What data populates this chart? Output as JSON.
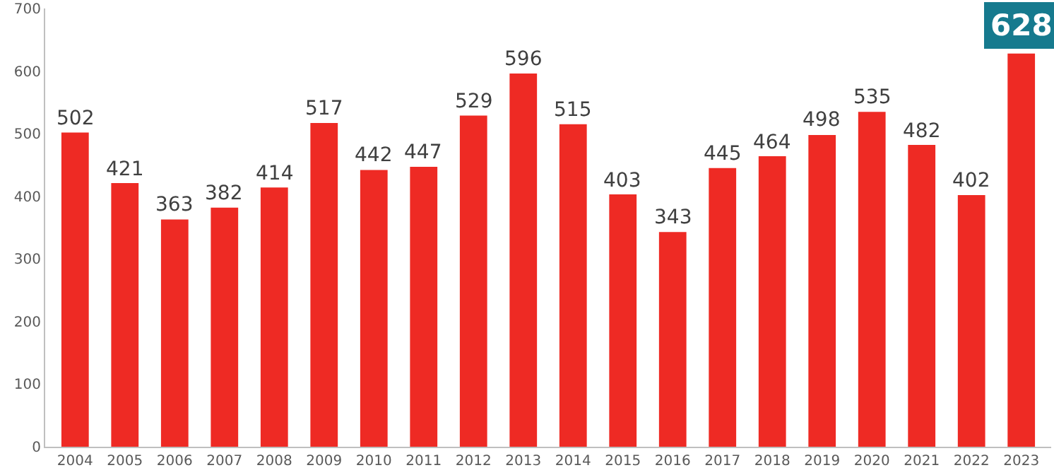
{
  "chart_data": {
    "type": "bar",
    "categories": [
      "2004",
      "2005",
      "2006",
      "2007",
      "2008",
      "2009",
      "2010",
      "2011",
      "2012",
      "2013",
      "2014",
      "2015",
      "2016",
      "2017",
      "2018",
      "2019",
      "2020",
      "2021",
      "2022",
      "2023"
    ],
    "values": [
      502,
      421,
      363,
      382,
      414,
      517,
      442,
      447,
      529,
      596,
      515,
      403,
      343,
      445,
      464,
      498,
      535,
      482,
      402,
      628
    ],
    "color": "#ee2a24",
    "ylim": [
      0,
      700
    ],
    "yticks": [
      0,
      100,
      200,
      300,
      400,
      500,
      600,
      700
    ],
    "grid": false,
    "legend": false,
    "data_labels": true
  }
}
